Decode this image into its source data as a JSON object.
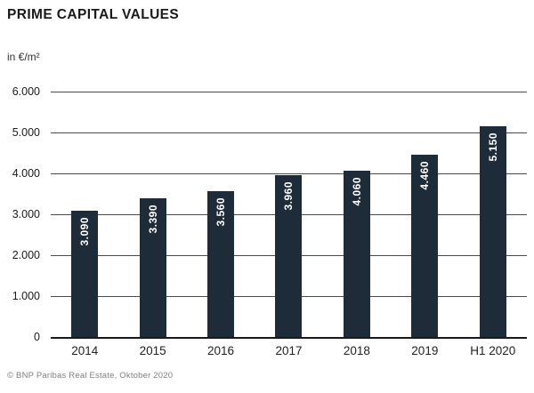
{
  "title": "PRIME CAPITAL VALUES",
  "unit_label": "in €/m²",
  "source": "© BNP Paribas Real Estate, Oktober 2020",
  "colors": {
    "bar": "#1e2b38",
    "bar_label": "#ffffff",
    "gridline": "#4a4a4a",
    "axis": "#1a1a1a",
    "text": "#1a1a1a",
    "source_text": "#808080"
  },
  "chart_data": {
    "type": "bar",
    "title": "PRIME CAPITAL VALUES",
    "xlabel": "",
    "ylabel": "in €/m²",
    "categories": [
      "2014",
      "2015",
      "2016",
      "2017",
      "2018",
      "2019",
      "H1 2020"
    ],
    "values": [
      3090,
      3390,
      3560,
      3960,
      4060,
      4460,
      5150
    ],
    "bar_labels": [
      "3.090",
      "3.390",
      "3.560",
      "3.960",
      "4.060",
      "4.460",
      "5.150"
    ],
    "ylim": [
      0,
      6000
    ],
    "ytick_interval": 1000,
    "ytick_labels": [
      "0",
      "1.000",
      "2.000",
      "3.000",
      "4.000",
      "5.000",
      "6.000"
    ],
    "grid": true,
    "legend": false,
    "bar_label_position": "inside-top-rotated"
  }
}
